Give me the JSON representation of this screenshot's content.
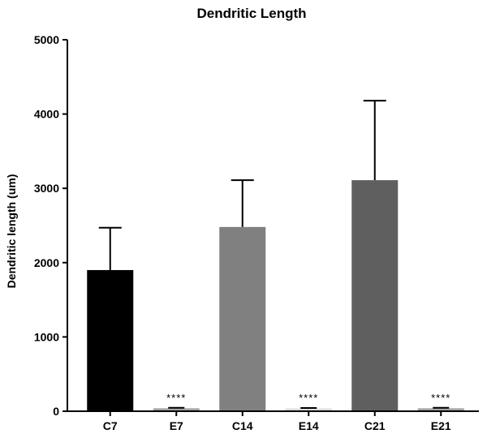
{
  "chart_data": {
    "type": "bar",
    "title": "Dendritic Length",
    "xlabel": "",
    "ylabel": "Dendritic length (um)",
    "ylim": [
      0,
      5000
    ],
    "yticks": [
      0,
      1000,
      2000,
      3000,
      4000,
      5000
    ],
    "grid": false,
    "categories": [
      "C7",
      "E7",
      "C14",
      "E14",
      "C21",
      "E21"
    ],
    "values": [
      1900,
      40,
      2480,
      38,
      3110,
      40
    ],
    "errors": [
      570,
      6,
      630,
      5,
      1070,
      6
    ],
    "colors": [
      "#000000",
      "#a3a3a3",
      "#808080",
      "#dcdcdc",
      "#5f5f5f",
      "#a3a3a3"
    ],
    "annotations": [
      "",
      "****",
      "",
      "****",
      "",
      "****"
    ]
  }
}
